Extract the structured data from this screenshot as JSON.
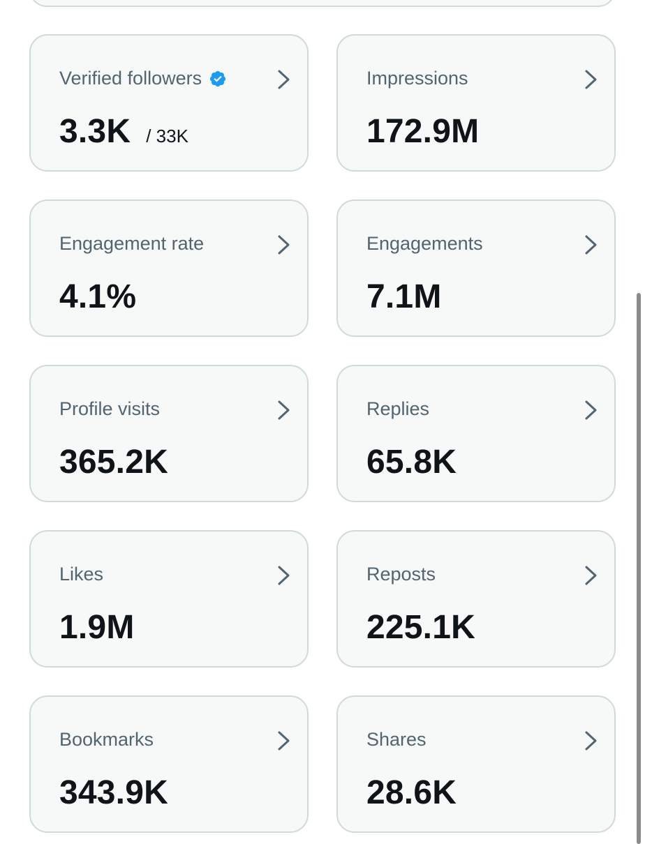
{
  "cards": [
    {
      "title": "Verified followers",
      "value": "3.3K",
      "subvalue": "/ 33K",
      "icon": "verified-badge-icon"
    },
    {
      "title": "Impressions",
      "value": "172.9M"
    },
    {
      "title": "Engagement rate",
      "value": "4.1%"
    },
    {
      "title": "Engagements",
      "value": "7.1M"
    },
    {
      "title": "Profile visits",
      "value": "365.2K"
    },
    {
      "title": "Replies",
      "value": "65.8K"
    },
    {
      "title": "Likes",
      "value": "1.9M"
    },
    {
      "title": "Reposts",
      "value": "225.1K"
    },
    {
      "title": "Bookmarks",
      "value": "343.9K"
    },
    {
      "title": "Shares",
      "value": "28.6K"
    }
  ],
  "colors": {
    "card_background": "#f7f9f9",
    "card_border": "#cfd9de",
    "label_text": "#536471",
    "value_text": "#0f1419",
    "verified_badge": "#1d9bf0",
    "chevron": "#536471"
  }
}
